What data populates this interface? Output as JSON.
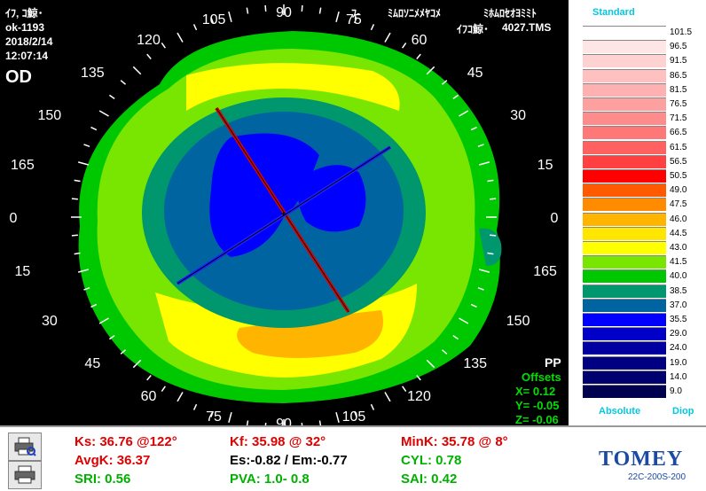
{
  "header": {
    "line1": "ｲﾌ, ｺ鯨･",
    "line2": "ok-1193",
    "date": "2018/2/14",
    "time": "12:07:14",
    "eye": "OD",
    "top_center": "ﾌ-",
    "top_right1": "ﾐﾑﾛｿﾆﾒﾒﾔｺﾒ",
    "top_right2": "ﾐﾎﾑﾛｾｵﾖﾐﾐﾄ",
    "file_label": "ｲﾌｺ鯨･",
    "file_value": "4027.TMS"
  },
  "axis_labels": [
    "0",
    "15",
    "30",
    "45",
    "60",
    "75",
    "90",
    "105",
    "120",
    "135",
    "150",
    "165",
    "0",
    "15",
    "30",
    "45",
    "60",
    "75",
    "90",
    "105",
    "120",
    "135",
    "150",
    "165"
  ],
  "offsets": {
    "pp": "PP",
    "title": "Offsets",
    "x": "X=  0.12",
    "y": "Y= -0.05",
    "z": "Z= -0.06"
  },
  "scale": {
    "title": "Standard",
    "absolute_label": "Absolute",
    "diop_label": "Diop",
    "levels": [
      {
        "value": "101.5",
        "color": "#ffffff"
      },
      {
        "value": "96.5",
        "color": "#ffe6e6"
      },
      {
        "value": "91.5",
        "color": "#ffd2d2"
      },
      {
        "value": "86.5",
        "color": "#ffc0c0"
      },
      {
        "value": "81.5",
        "color": "#ffb0b0"
      },
      {
        "value": "76.5",
        "color": "#ffa0a0"
      },
      {
        "value": "71.5",
        "color": "#ff8c8c"
      },
      {
        "value": "66.5",
        "color": "#ff7878"
      },
      {
        "value": "61.5",
        "color": "#ff6060"
      },
      {
        "value": "56.5",
        "color": "#ff4040"
      },
      {
        "value": "50.5",
        "color": "#ff0000"
      },
      {
        "value": "49.0",
        "color": "#ff5a00"
      },
      {
        "value": "47.5",
        "color": "#ff8c00"
      },
      {
        "value": "46.0",
        "color": "#ffb400"
      },
      {
        "value": "44.5",
        "color": "#ffe600"
      },
      {
        "value": "43.0",
        "color": "#ffff00"
      },
      {
        "value": "41.5",
        "color": "#78e600"
      },
      {
        "value": "40.0",
        "color": "#00c800"
      },
      {
        "value": "38.5",
        "color": "#00966e"
      },
      {
        "value": "37.0",
        "color": "#0064a0"
      },
      {
        "value": "35.5",
        "color": "#0000ff"
      },
      {
        "value": "29.0",
        "color": "#0000c8"
      },
      {
        "value": "24.0",
        "color": "#0000a0"
      },
      {
        "value": "19.0",
        "color": "#000082"
      },
      {
        "value": "14.0",
        "color": "#00006e"
      },
      {
        "value": "9.0",
        "color": "#000050"
      }
    ]
  },
  "footer": {
    "ks": "Ks: 36.76 @122°",
    "kf": "Kf: 35.98 @ 32°",
    "mink": "MinK: 35.78 @  8°",
    "avgk": "AvgK: 36.37",
    "es": "Es:-0.82 / Em:-0.77",
    "cyl": "CYL:  0.78",
    "sri": "SRI: 0.56",
    "pva": "PVA:   1.0-  0.8",
    "sai": "SAI: 0.42",
    "logo": "TOMEY",
    "model": "22C-200S-200",
    "icon_print": "printer-icon",
    "icon_print_preview": "print-preview-icon"
  }
}
